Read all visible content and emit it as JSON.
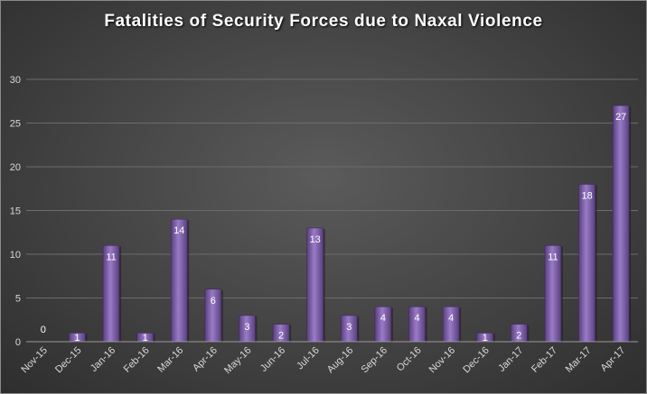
{
  "chart_data": {
    "type": "bar",
    "title": "Fatalities of Security Forces due to Naxal Violence",
    "xlabel": "",
    "ylabel": "",
    "categories": [
      "Nov-15",
      "Dec-15",
      "Jan-16",
      "Feb-16",
      "Mar-16",
      "Apr-16",
      "May-16",
      "Jun-16",
      "Jul-16",
      "Aug-16",
      "Sep-16",
      "Oct-16",
      "Nov-16",
      "Dec-16",
      "Jan-17",
      "Feb-17",
      "Mar-17",
      "Apr-17"
    ],
    "series": [
      {
        "values": [
          0,
          1,
          11,
          1,
          14,
          6,
          3,
          2,
          13,
          3,
          4,
          4,
          4,
          1,
          2,
          11,
          18,
          27
        ]
      }
    ],
    "ylim": [
      0,
      30
    ],
    "yticks": [
      0,
      5,
      10,
      15,
      20,
      25,
      30
    ],
    "grid": true,
    "legend": "none",
    "bar_color": "#7b5aa6",
    "data_labels": true
  }
}
